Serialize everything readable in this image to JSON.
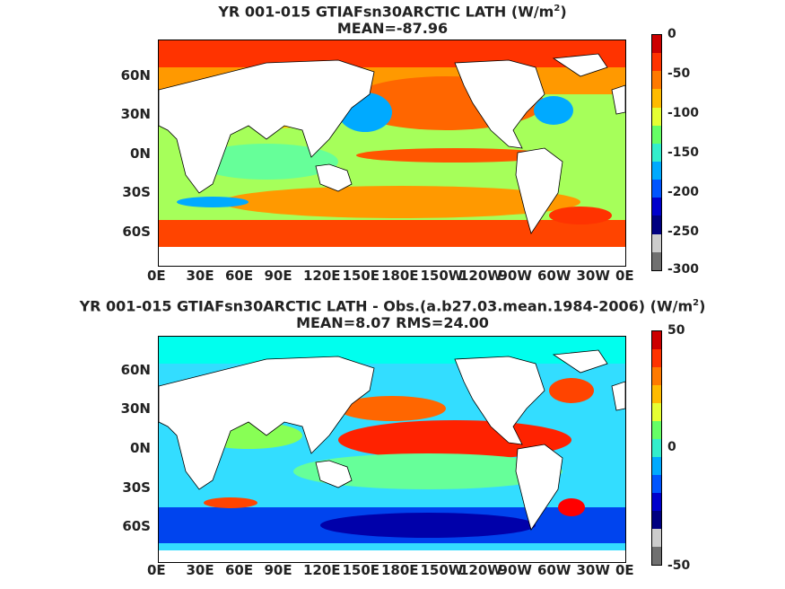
{
  "panels": [
    {
      "title_main": "YR 001-015 GTIAFsn30ARCTIC  LATH (W/m",
      "title_sup": "2",
      "title_end": ")",
      "subtitle": "MEAN=-87.96",
      "colorbar_ticks": [
        "0",
        "-50",
        "-100",
        "-150",
        "-200",
        "-250",
        "-300"
      ],
      "colorbar_range": [
        -300,
        0
      ],
      "colors": [
        "#cc0000",
        "#ff3300",
        "#ff7a00",
        "#ffbb00",
        "#e6ff33",
        "#66ff66",
        "#33eecc",
        "#00aaff",
        "#0055ff",
        "#0000cc",
        "#000080",
        "#cccccc",
        "#707070"
      ]
    },
    {
      "title_main": "YR 001-015 GTIAFsn30ARCTIC LATH - Obs.(a.b27.03.mean.1984-2006) (W/m",
      "title_sup": "2",
      "title_end": ")",
      "subtitle": "MEAN=8.07 RMS=24.00",
      "colorbar_ticks": [
        "50",
        "0",
        "-50"
      ],
      "colorbar_range": [
        -50,
        50
      ],
      "colors": [
        "#cc0000",
        "#ff3300",
        "#ff7a00",
        "#ffbb00",
        "#e6ff33",
        "#66ff66",
        "#33eecc",
        "#00aaff",
        "#0055ff",
        "#0000cc",
        "#000080",
        "#cccccc",
        "#707070"
      ]
    }
  ],
  "lat_labels": [
    "60N",
    "30N",
    "0N",
    "30S",
    "60S"
  ],
  "lon_labels": [
    "0E",
    "30E",
    "60E",
    "90E",
    "120E",
    "150E",
    "180E",
    "150W",
    "120W",
    "90W",
    "60W",
    "30W",
    "0E"
  ]
}
